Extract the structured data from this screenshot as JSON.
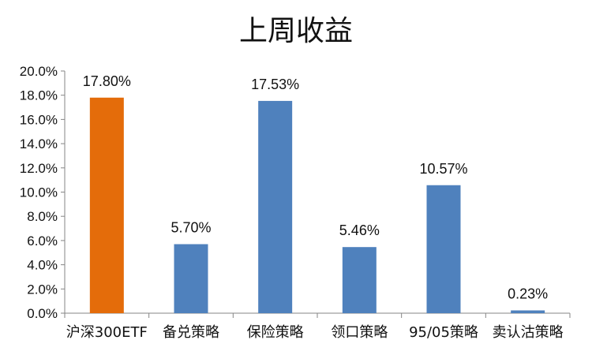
{
  "chart_data": {
    "type": "bar",
    "title": "上周收益",
    "xlabel": "",
    "ylabel": "",
    "ylim": [
      0,
      20
    ],
    "y_ticks": [
      "0.0%",
      "2.0%",
      "4.0%",
      "6.0%",
      "8.0%",
      "10.0%",
      "12.0%",
      "14.0%",
      "16.0%",
      "18.0%",
      "20.0%"
    ],
    "grid": false,
    "legend": "none",
    "categories": [
      "沪深300ETF",
      "备兑策略",
      "保险策略",
      "领口策略",
      "95/05策略",
      "卖认沽策略"
    ],
    "values": [
      17.8,
      5.7,
      17.53,
      5.46,
      10.57,
      0.23
    ],
    "data_labels": [
      "17.80%",
      "5.70%",
      "17.53%",
      "5.46%",
      "10.57%",
      "0.23%"
    ],
    "colors": [
      "#E46C0A",
      "#4F81BD",
      "#4F81BD",
      "#4F81BD",
      "#4F81BD",
      "#4F81BD"
    ],
    "axis_color": "#868686"
  }
}
